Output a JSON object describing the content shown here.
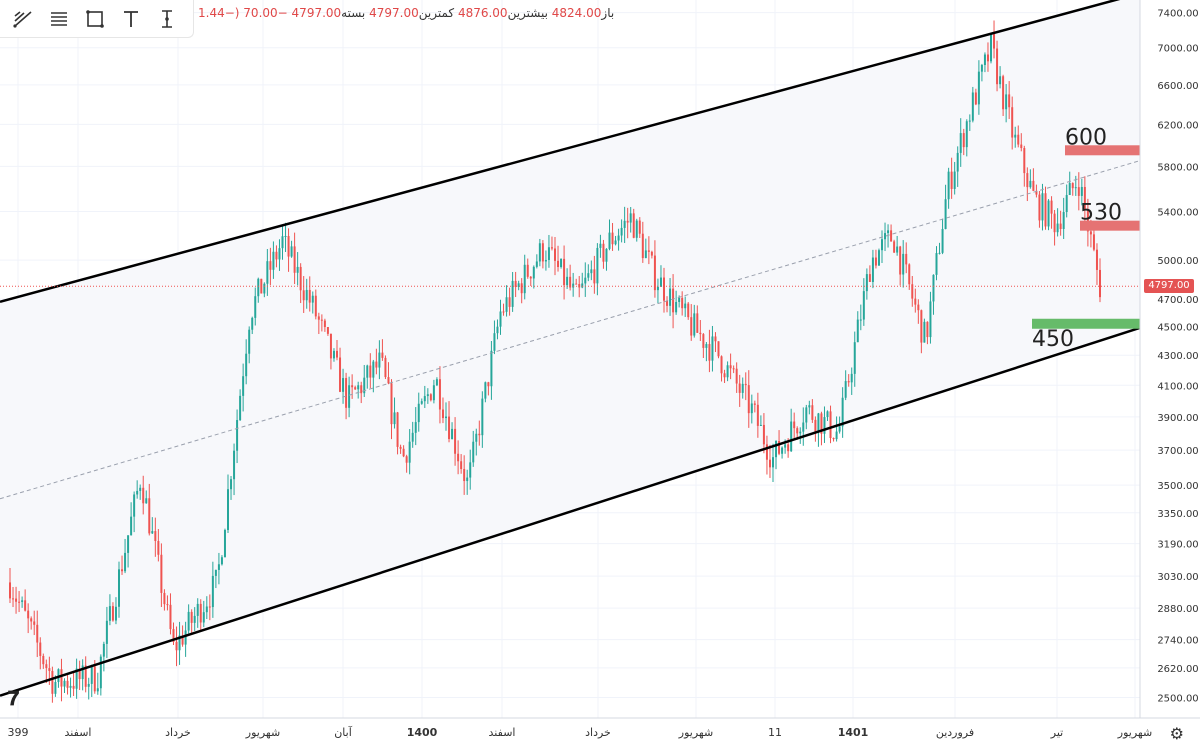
{
  "toolbar": {
    "icons": [
      "trend-lines-icon",
      "fib-icon",
      "rectangle-icon",
      "text-icon",
      "measure-icon"
    ]
  },
  "legend": {
    "open_label": "باز",
    "open": "4824.00",
    "high_label": "بیشترین",
    "high": "4876.00",
    "low_label": "کمترین",
    "low": "4797.00",
    "close_label": "بسته",
    "close": "4797.00",
    "change": "−70.00",
    "change_pct": "(−1.44"
  },
  "last_price": "4797.00",
  "chart_data": {
    "type": "candlestick",
    "y_axis": {
      "scale": "log",
      "ticks": [
        2500,
        2620,
        2740,
        2880,
        3030,
        3190,
        3350,
        3500,
        3700,
        3900,
        4100,
        4300,
        4500,
        4700,
        5000,
        5400,
        5800,
        6200,
        6600,
        7000,
        7400
      ],
      "tick_labels": [
        "2500.00",
        "2620.00",
        "2740.00",
        "2880.00",
        "3030.00",
        "3190.00",
        "3350.00",
        "3500.00",
        "3700.00",
        "3900.00",
        "4100.00",
        "4300.00",
        "4500.00",
        "4700.00",
        "5000.00",
        "5400.00",
        "5800.00",
        "6200.00",
        "6600.00",
        "7000.00",
        "7400.00"
      ]
    },
    "x_axis": {
      "tick_labels": [
        "399",
        "اسفند",
        "خرداد",
        "شهریور",
        "آبان",
        "1400",
        "اسفند",
        "خرداد",
        "شهریور",
        "11",
        "1401",
        "فروردین",
        "تیر",
        "شهریور"
      ]
    },
    "trend_points": [
      [
        0,
        3000
      ],
      [
        4,
        2560
      ],
      [
        8,
        2580
      ],
      [
        12,
        3550
      ],
      [
        15,
        2700
      ],
      [
        19,
        3000
      ],
      [
        22,
        4600
      ],
      [
        25,
        5150
      ],
      [
        28,
        4600
      ],
      [
        31,
        4000
      ],
      [
        34,
        4250
      ],
      [
        36,
        3650
      ],
      [
        39,
        4150
      ],
      [
        42,
        3500
      ],
      [
        45,
        4600
      ],
      [
        49,
        5100
      ],
      [
        52,
        4700
      ],
      [
        55,
        5150
      ],
      [
        57,
        5350
      ],
      [
        59,
        4900
      ],
      [
        62,
        4550
      ],
      [
        65,
        4300
      ],
      [
        68,
        3950
      ],
      [
        70,
        3650
      ],
      [
        73,
        3950
      ],
      [
        76,
        3800
      ],
      [
        79,
        5000
      ],
      [
        81,
        5200
      ],
      [
        84,
        4400
      ],
      [
        86,
        5600
      ],
      [
        88,
        6300
      ],
      [
        90,
        7000
      ],
      [
        92,
        6100
      ],
      [
        94,
        5500
      ],
      [
        96,
        5300
      ],
      [
        98,
        5700
      ],
      [
        100,
        4797
      ]
    ],
    "annotations": [
      {
        "text": "600",
        "level": 5950,
        "color": "#e57373"
      },
      {
        "text": "530",
        "level": 5280,
        "color": "#e57373"
      },
      {
        "text": "450",
        "level": 4520,
        "color": "#66bb6a"
      }
    ],
    "channel": {
      "upper": [
        [
          0,
          4700
        ],
        [
          100,
          7500
        ]
      ],
      "lower": [
        [
          0,
          2520
        ],
        [
          100,
          4400
        ]
      ]
    }
  }
}
